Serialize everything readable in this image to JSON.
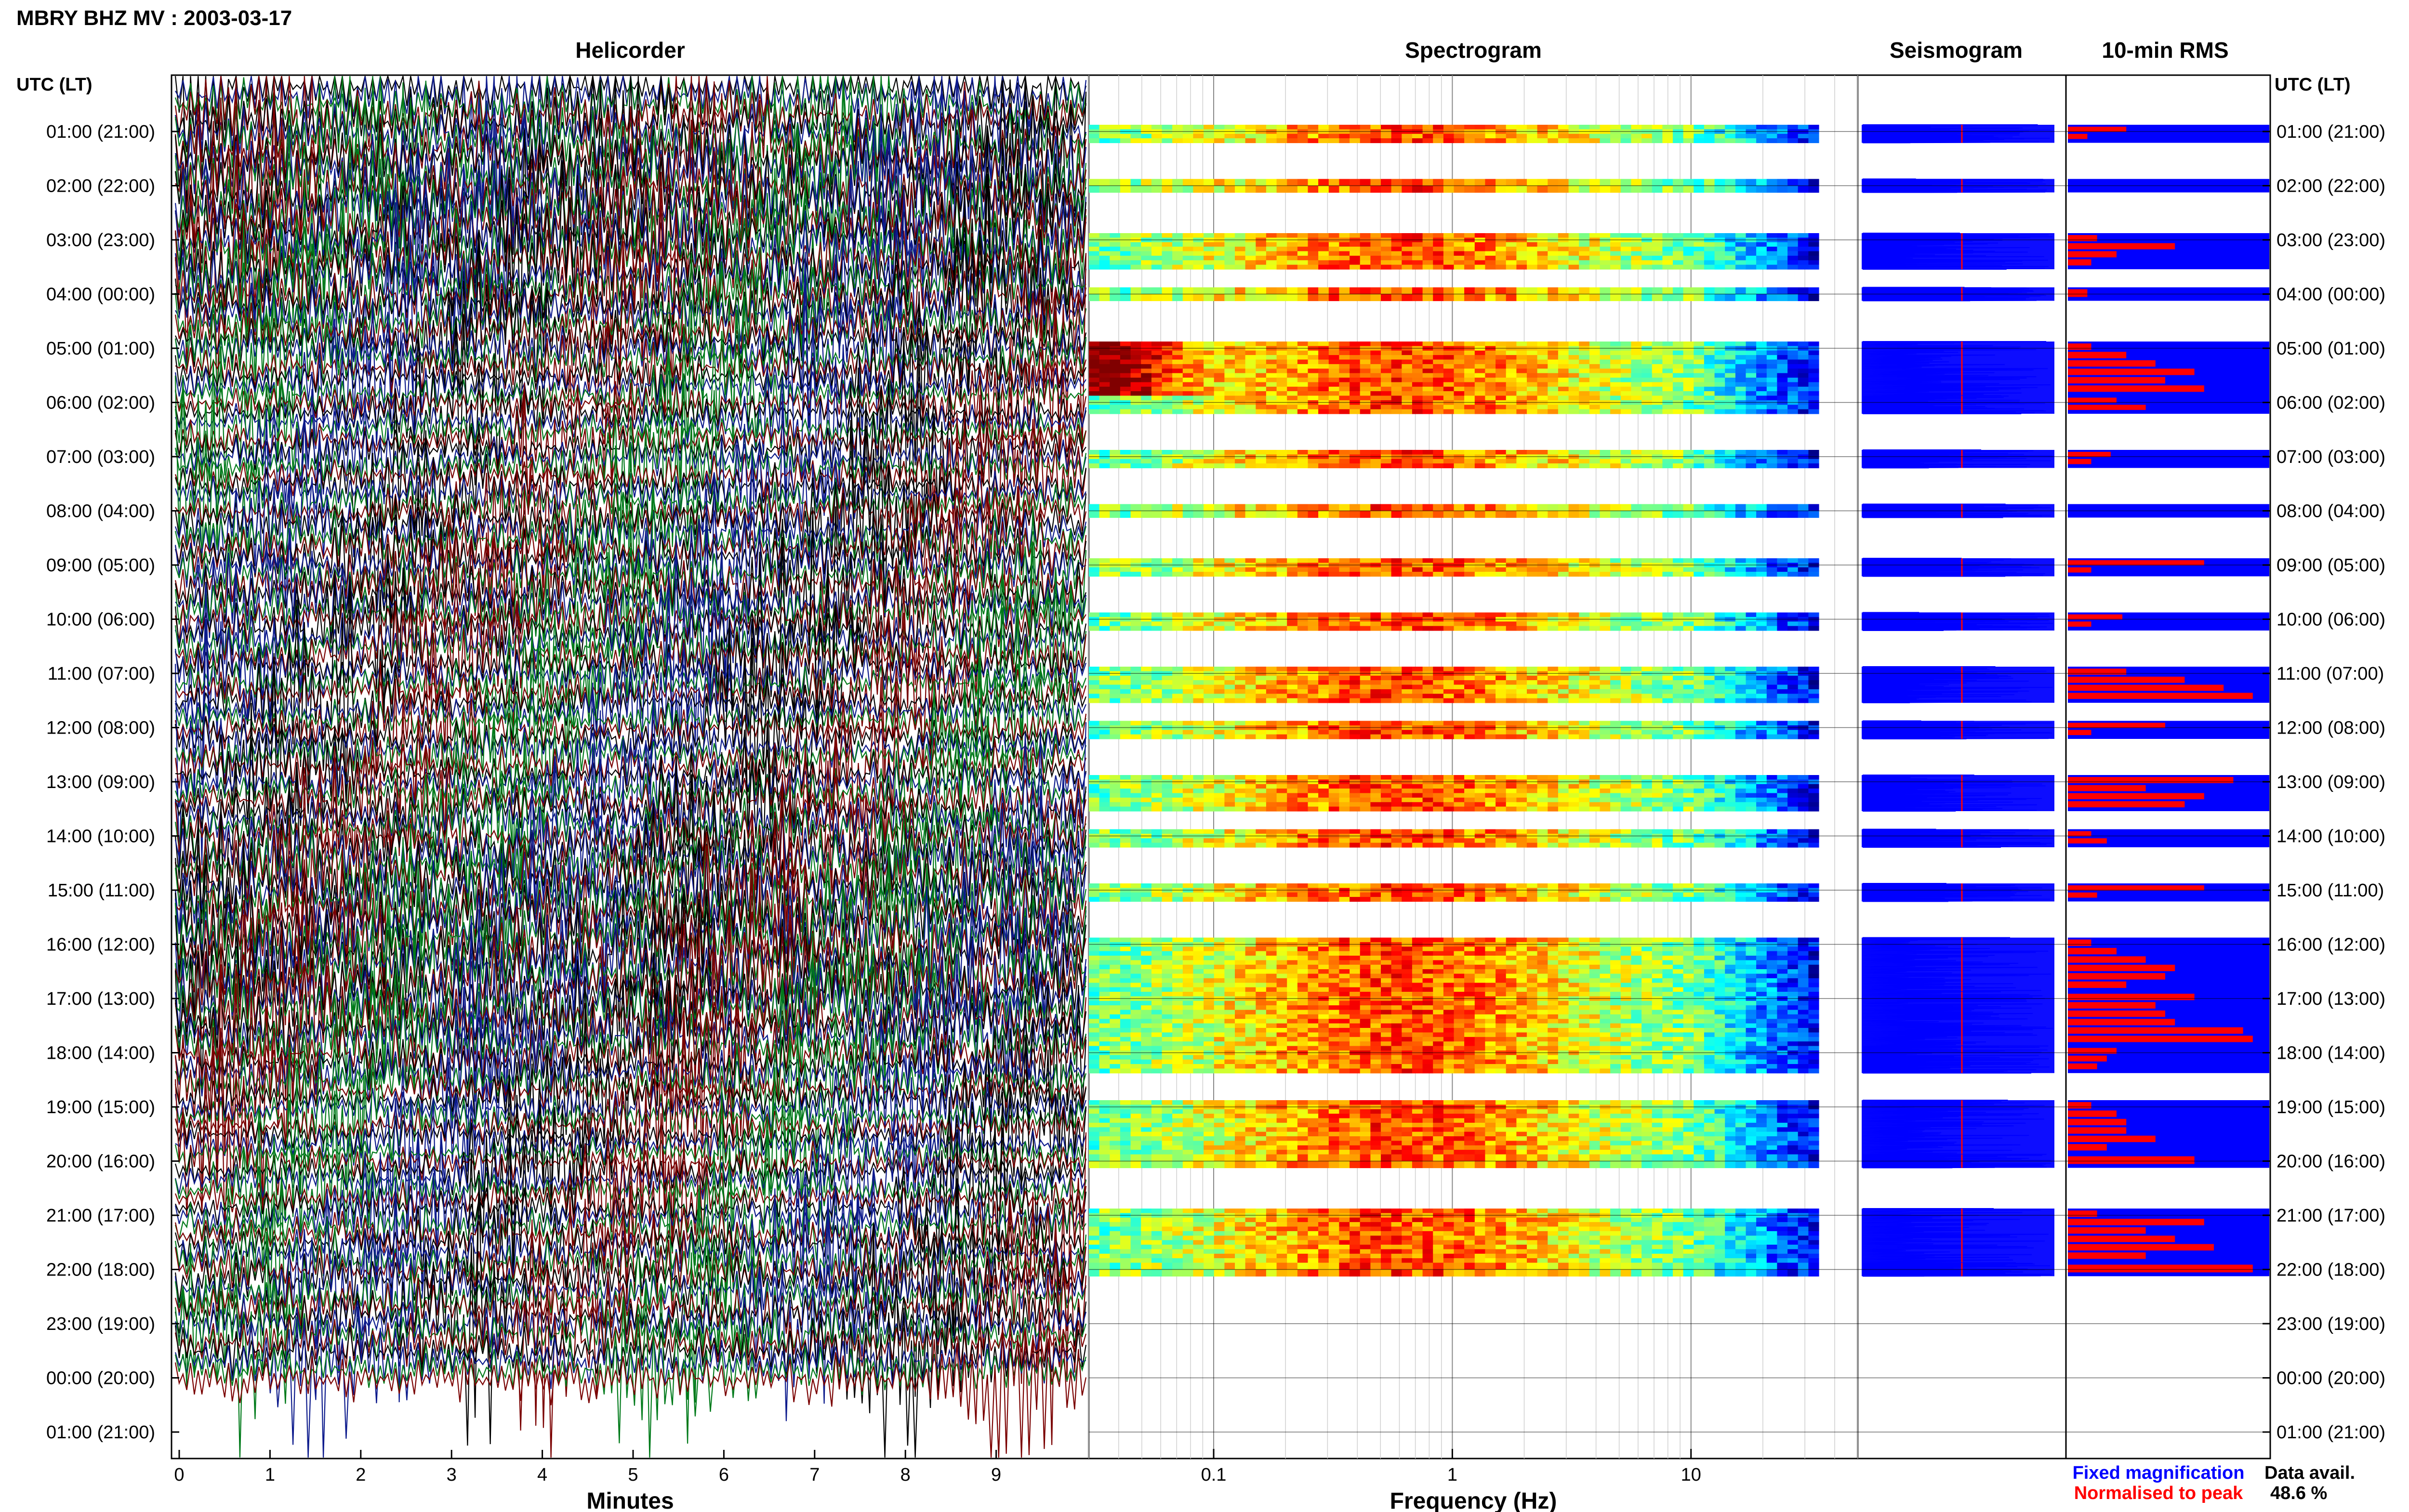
{
  "figure": {
    "title": "MBRY BHZ MV : 2003-03-17",
    "panel_titles": {
      "helicorder": "Helicorder",
      "spectrogram": "Spectrogram",
      "seismogram": "Seismogram",
      "rms": "10-min RMS"
    },
    "time_axis_header_left": "UTC (LT)",
    "time_axis_header_right": "UTC (LT)",
    "footer": {
      "legend_fixed": "Fixed magnification",
      "legend_normalised": "Normalised to peak",
      "data_avail_label": "Data avail.",
      "data_avail_value": "48.6 %"
    },
    "colors": {
      "helicorder_traces": [
        "#000000",
        "#0c1a8c",
        "#007a1a",
        "#7a0000"
      ],
      "seismogram": "#0000ff",
      "rms_fixed": "#0000ff",
      "rms_normalised": "#ff0000",
      "legend_fixed": "#0000ff",
      "legend_normalised": "#ff0000"
    }
  },
  "chart_data": [
    {
      "type": "line",
      "name": "helicorder",
      "title": "Helicorder",
      "xlabel": "Minutes",
      "x_ticks": [
        "0",
        "1",
        "2",
        "3",
        "4",
        "5",
        "6",
        "7",
        "8",
        "9"
      ],
      "xlim": [
        0,
        10
      ],
      "y_ticks": [
        "01:00 (21:00)",
        "02:00 (22:00)",
        "03:00 (23:00)",
        "04:00 (00:00)",
        "05:00 (01:00)",
        "06:00 (02:00)",
        "07:00 (03:00)",
        "08:00 (04:00)",
        "09:00 (05:00)",
        "10:00 (06:00)",
        "11:00 (07:00)",
        "12:00 (08:00)",
        "13:00 (09:00)",
        "14:00 (10:00)",
        "15:00 (11:00)",
        "16:00 (12:00)",
        "17:00 (13:00)",
        "18:00 (14:00)",
        "19:00 (15:00)",
        "20:00 (16:00)",
        "21:00 (17:00)",
        "22:00 (18:00)",
        "23:00 (19:00)",
        "00:00 (20:00)",
        "01:00 (21:00)"
      ],
      "rows_per_hour": 6
    },
    {
      "type": "heatmap",
      "name": "spectrogram",
      "title": "Spectrogram",
      "xlabel": "Frequency (Hz)",
      "x_scale": "log",
      "x_ticks": [
        "0.1",
        "1",
        "10"
      ],
      "xlim": [
        0.03,
        50
      ],
      "colormap": "jet"
    },
    {
      "type": "line",
      "name": "seismogram",
      "title": "Seismogram"
    },
    {
      "type": "bar",
      "name": "rms",
      "title": "10-min RMS",
      "orientation": "horizontal",
      "series": [
        {
          "name": "Fixed magnification",
          "color": "#0000ff"
        },
        {
          "name": "Normalised to peak",
          "color": "#ff0000"
        }
      ]
    }
  ],
  "bands": [
    {
      "hour": 1,
      "rows": [
        0.3,
        0.1,
        0,
        0,
        0,
        0
      ],
      "peak": 0
    },
    {
      "hour": 2,
      "rows": [
        0,
        0,
        0,
        0,
        0,
        0
      ],
      "peak": 0.05
    },
    {
      "hour": 3,
      "rows": [
        0.15,
        0.55,
        0.25,
        0.12,
        0,
        0
      ],
      "peak": 0
    },
    {
      "hour": 4,
      "rows": [
        0.1,
        0,
        0,
        0,
        0,
        0
      ],
      "peak": 0
    },
    {
      "hour": 5,
      "rows": [
        0.12,
        0.3,
        0.45,
        0.65,
        0.5,
        0.7
      ],
      "peak": 0.9
    },
    {
      "hour": 6,
      "rows": [
        0.25,
        0.4,
        0,
        0,
        0,
        0
      ],
      "peak": 0
    },
    {
      "hour": 7,
      "rows": [
        0.22,
        0.12,
        0,
        0,
        0,
        0
      ],
      "peak": 0
    },
    {
      "hour": 8,
      "rows": [
        0,
        0,
        0,
        0,
        0,
        0
      ],
      "peak": 0
    },
    {
      "hour": 9,
      "rows": [
        0.7,
        0.12,
        0,
        0,
        0,
        0
      ],
      "peak": 0
    },
    {
      "hour": 10,
      "rows": [
        0.28,
        0.12,
        0,
        0,
        0,
        0
      ],
      "peak": 0
    },
    {
      "hour": 11,
      "rows": [
        0.3,
        0.6,
        0.8,
        0.95,
        0,
        0
      ],
      "peak": 0
    },
    {
      "hour": 12,
      "rows": [
        0.5,
        0.12,
        0,
        0,
        0,
        0
      ],
      "peak": 0
    },
    {
      "hour": 13,
      "rows": [
        0.85,
        0.4,
        0.7,
        0.6,
        0,
        0
      ],
      "peak": 0
    },
    {
      "hour": 14,
      "rows": [
        0.12,
        0.2,
        0,
        0,
        0,
        0
      ],
      "peak": 0
    },
    {
      "hour": 15,
      "rows": [
        0.7,
        0.15,
        0,
        0,
        0,
        0
      ],
      "peak": 0
    },
    {
      "hour": 16,
      "rows": [
        0.12,
        0.25,
        0.4,
        0.55,
        0.5,
        0.3
      ],
      "peak": 0
    },
    {
      "hour": 17,
      "rows": [
        0.65,
        0.45,
        0.5,
        0.55,
        0.9,
        0.95
      ],
      "peak": 0
    },
    {
      "hour": 18,
      "rows": [
        0.25,
        0.2,
        0.15,
        0,
        0,
        0
      ],
      "peak": 0
    },
    {
      "hour": 19,
      "rows": [
        0.12,
        0.25,
        0.3,
        0.3,
        0.45,
        0.2
      ],
      "peak": 0
    },
    {
      "hour": 20,
      "rows": [
        0.65,
        0,
        0,
        0,
        0,
        0
      ],
      "peak": 0
    },
    {
      "hour": 21,
      "rows": [
        0.15,
        0.7,
        0.4,
        0.55,
        0.75,
        0.4
      ],
      "peak": 0
    },
    {
      "hour": 22,
      "rows": [
        0.95,
        0,
        0,
        0,
        0,
        0
      ],
      "peak": 0
    }
  ]
}
